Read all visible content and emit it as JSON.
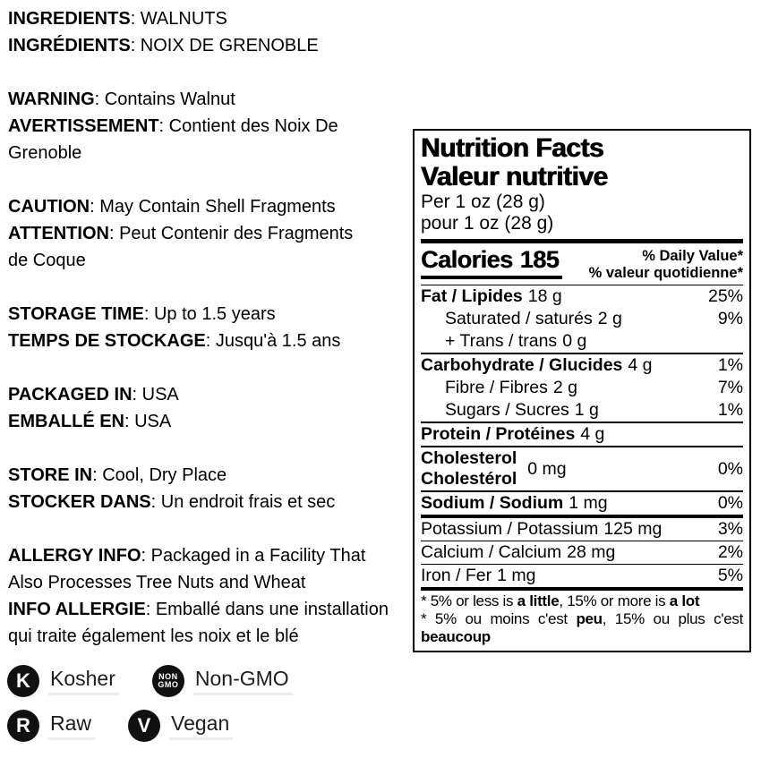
{
  "colors": {
    "text": "#000000",
    "badge_bg": "#111111",
    "badge_underline": "#ececec"
  },
  "info": {
    "sections": [
      {
        "entries": [
          {
            "label": "INGREDIENTS",
            "value": ": WALNUTS"
          },
          {
            "label": "INGRÉDIENTS",
            "value": ": NOIX DE GRENOBLE"
          }
        ]
      },
      {
        "entries": [
          {
            "label": "WARNING",
            "value": ": Contains Walnut"
          },
          {
            "label": "AVERTISSEMENT",
            "value": ": Contient des Noix De\nGrenoble"
          }
        ]
      },
      {
        "entries": [
          {
            "label": "CAUTION",
            "value": ": May Contain Shell Fragments"
          },
          {
            "label": "ATTENTION",
            "value": ": Peut Contenir des Fragments\nde Coque"
          }
        ]
      },
      {
        "entries": [
          {
            "label": "STORAGE TIME",
            "value": ": Up to 1.5 years"
          },
          {
            "label": "TEMPS DE STOCKAGE",
            "value": ": Jusqu'à 1.5 ans"
          }
        ]
      },
      {
        "entries": [
          {
            "label": "PACKAGED IN",
            "value": ": USA"
          },
          {
            "label": "EMBALLÉ EN",
            "value": ": USA"
          }
        ]
      },
      {
        "entries": [
          {
            "label": "STORE IN",
            "value": ": Cool, Dry Place"
          },
          {
            "label": "STOCKER DANS",
            "value": ": Un endroit frais et sec"
          }
        ]
      },
      {
        "entries": [
          {
            "label": "ALLERGY INFO",
            "value": ": Packaged in a Facility That\nAlso Processes Tree Nuts and Wheat"
          },
          {
            "label": "INFO ALLERGIE",
            "value": ": Emballé dans une installation\nqui traite également les noix et le blé"
          }
        ]
      }
    ]
  },
  "nutrition": {
    "title_en": "Nutrition Facts",
    "title_fr": "Valeur nutritive",
    "serving_en": "Per 1 oz (28 g)",
    "serving_fr": "pour 1 oz (28 g)",
    "calories_label": "Calories",
    "calories_value": "185",
    "dv_header_en": "% Daily Value*",
    "dv_header_fr": "% valeur quotidienne*",
    "rows": [
      {
        "name": "Fat / Lipides",
        "amount": "18 g",
        "dv": "25%"
      },
      {
        "name": "Saturated / saturés",
        "amount": "2 g",
        "dv": "9%"
      },
      {
        "name": "+ Trans / trans",
        "amount": "0 g",
        "dv": ""
      },
      {
        "name": "Carbohydrate / Glucides",
        "amount": "4 g",
        "dv": "1%"
      },
      {
        "name": "Fibre / Fibres",
        "amount": "2 g",
        "dv": "7%"
      },
      {
        "name": "Sugars / Sucres",
        "amount": "1 g",
        "dv": "1%"
      },
      {
        "name": "Protein / Protéines",
        "amount": "4 g",
        "dv": ""
      },
      {
        "name_en": "Cholesterol",
        "name_fr": "Cholestérol",
        "amount": "0 mg",
        "dv": "0%"
      },
      {
        "name": "Sodium / Sodium",
        "amount": "1 mg",
        "dv": "0%"
      },
      {
        "name": "Potassium / Potassium",
        "amount": "125 mg",
        "dv": "3%"
      },
      {
        "name": "Calcium / Calcium",
        "amount": "28 mg",
        "dv": "2%"
      },
      {
        "name": "Iron / Fer",
        "amount": "1 mg",
        "dv": "5%"
      }
    ],
    "footnote_en": {
      "p1": "* 5% or less is ",
      "b1": "a little",
      "p2": ", 15% or more is ",
      "b2": "a lot"
    },
    "footnote_fr": {
      "p1": "* 5% ou moins c'est ",
      "b1": "peu",
      "p2": ", 15% ou plus c'est ",
      "b2": "beaucoup"
    }
  },
  "badges": [
    {
      "icon": "K",
      "label": "Kosher"
    },
    {
      "icon_top": "NON",
      "icon_bottom": "GMO",
      "label": "Non-GMO"
    },
    {
      "icon": "R",
      "label": "Raw"
    },
    {
      "icon": "V",
      "label": "Vegan"
    }
  ]
}
